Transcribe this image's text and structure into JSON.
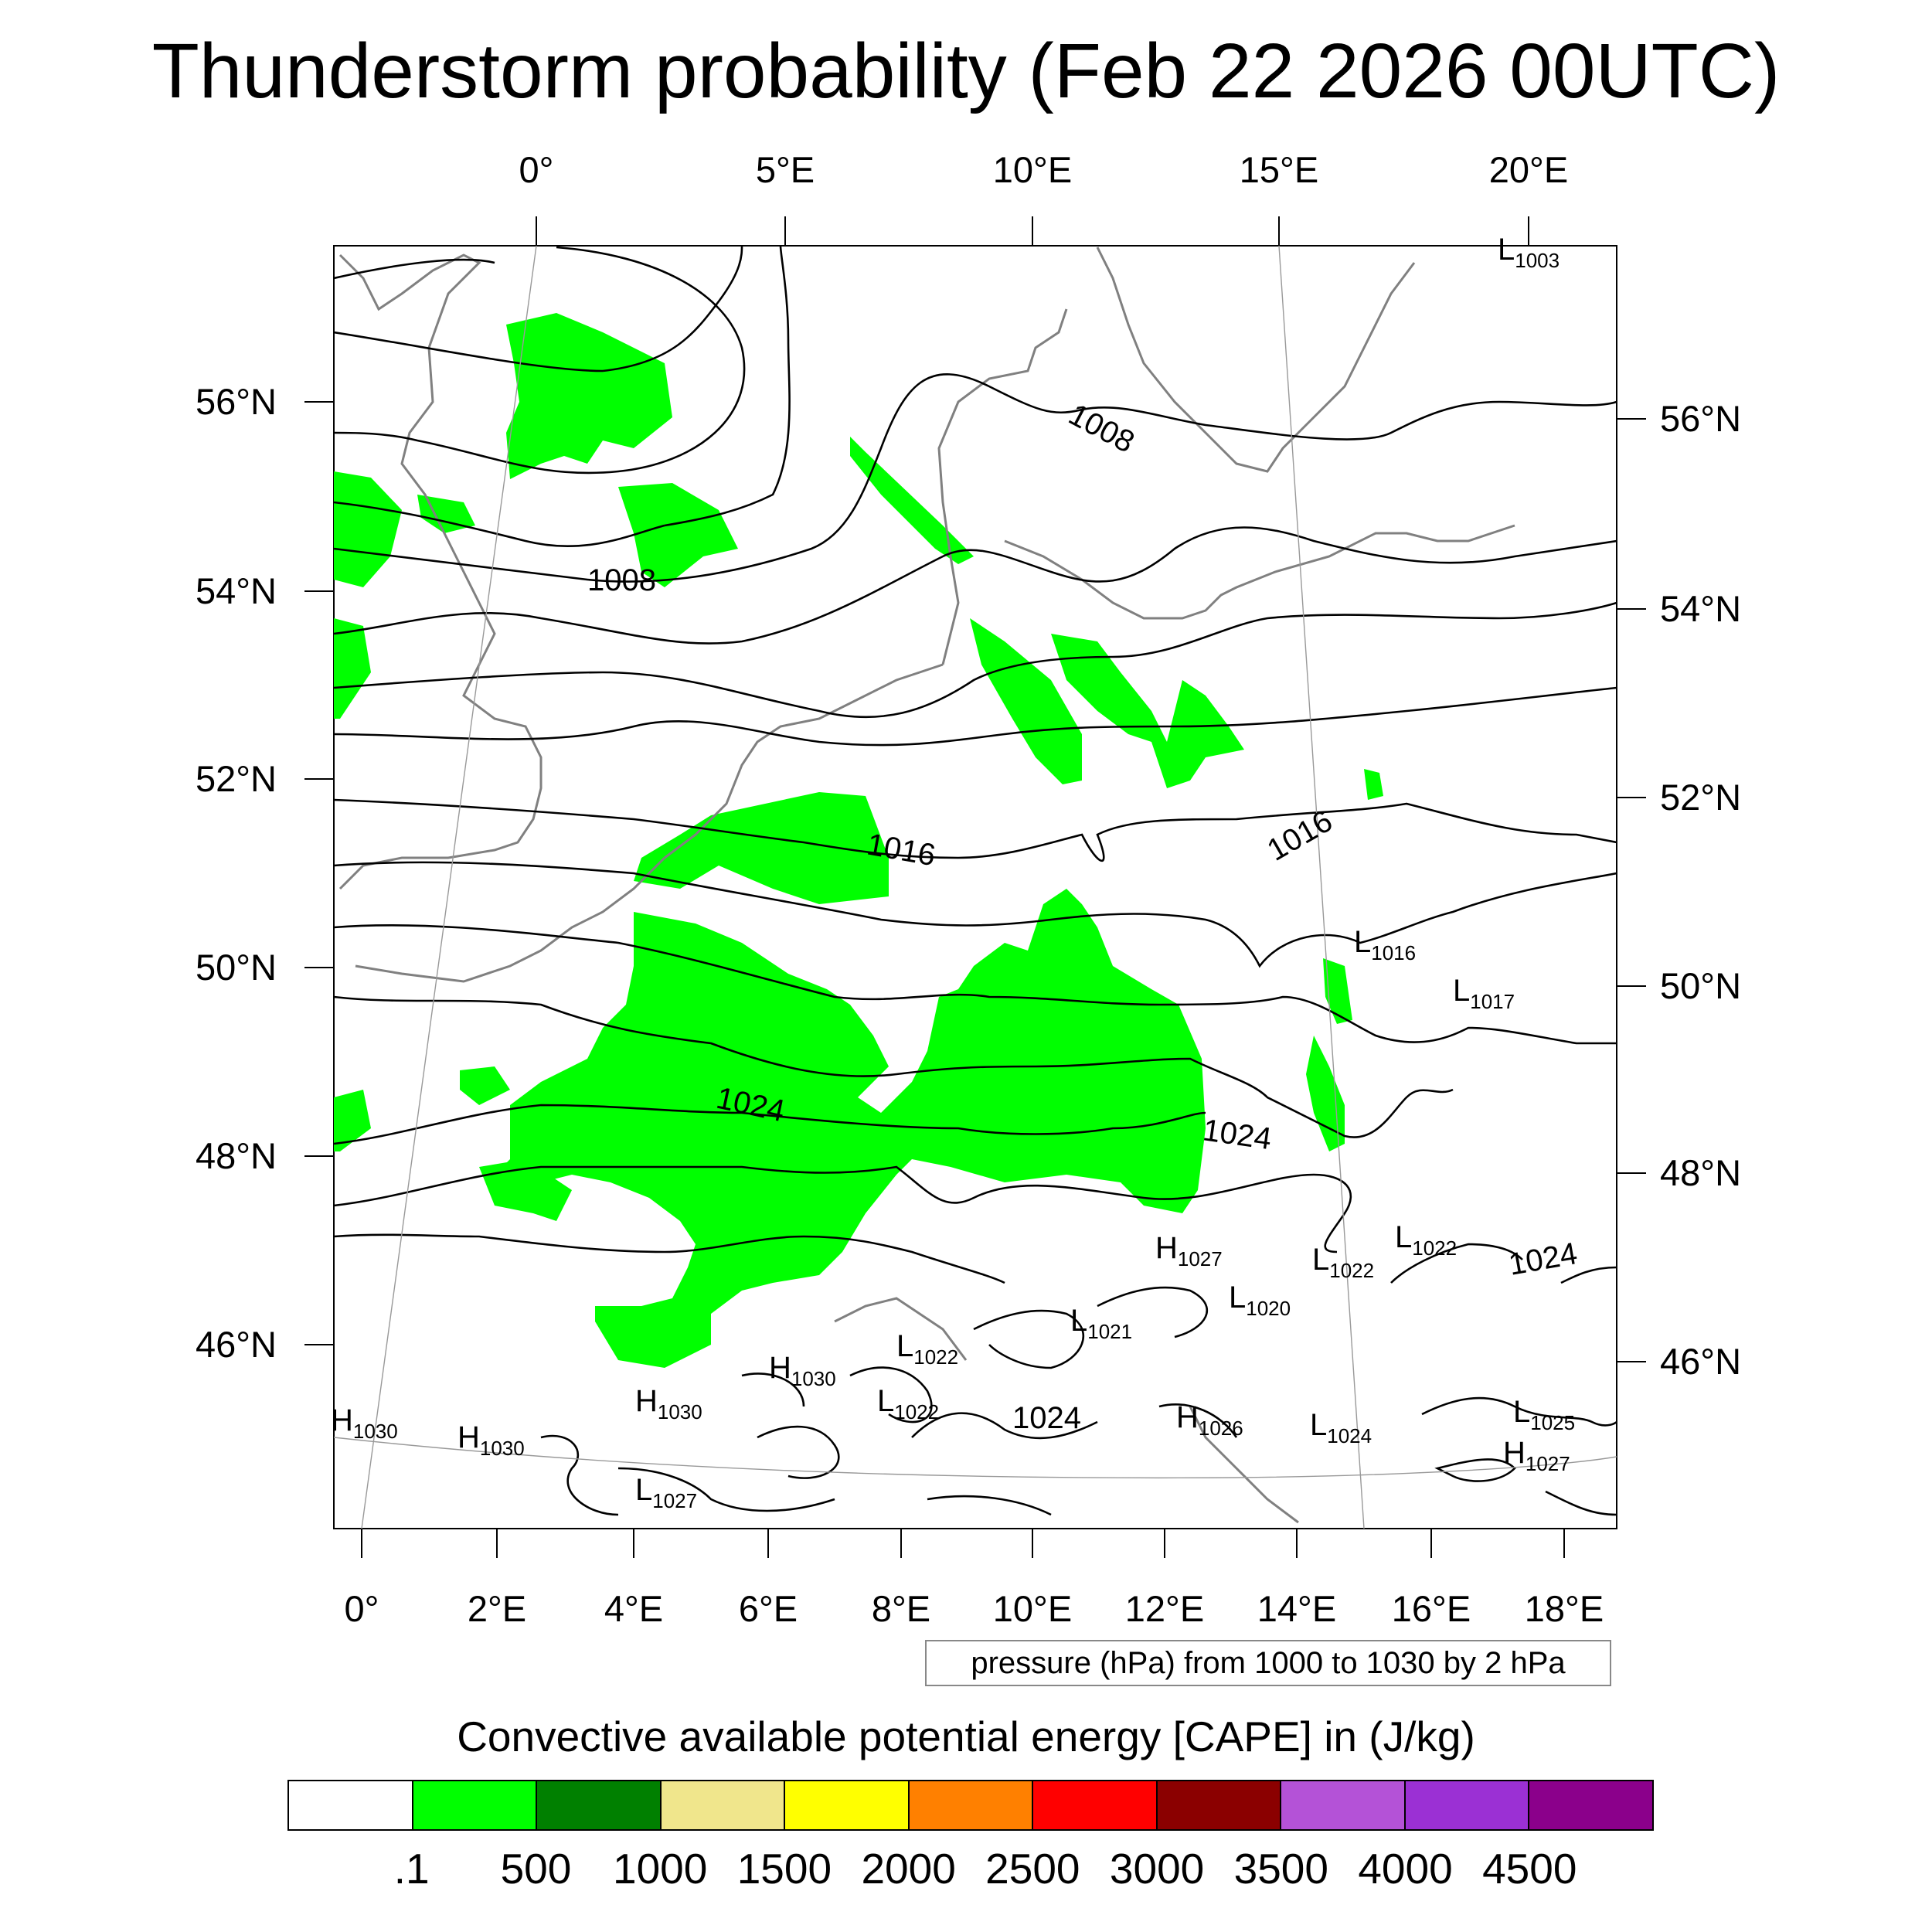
{
  "title": "Thunderstorm probability (Feb 22 2026 00UTC)",
  "map": {
    "top_longitude_labels": [
      "0°",
      "5°E",
      "10°E",
      "15°E",
      "20°E"
    ],
    "bottom_longitude_labels": [
      "0°",
      "2°E",
      "4°E",
      "6°E",
      "8°E",
      "10°E",
      "12°E",
      "14°E",
      "16°E",
      "18°E"
    ],
    "left_latitude_labels": [
      "56°N",
      "54°N",
      "52°N",
      "50°N",
      "48°N",
      "46°N"
    ],
    "right_latitude_labels": [
      "56°N",
      "54°N",
      "52°N",
      "50°N",
      "48°N",
      "46°N"
    ],
    "isobar_labels": [
      "1008",
      "1008",
      "1016",
      "1016",
      "1024",
      "1024",
      "1024",
      "1024"
    ],
    "pressure_centers": [
      {
        "kind": "L",
        "value": "1003"
      },
      {
        "kind": "L",
        "value": "1016"
      },
      {
        "kind": "L",
        "value": "1017"
      },
      {
        "kind": "H",
        "value": "1027"
      },
      {
        "kind": "L",
        "value": "1022"
      },
      {
        "kind": "L",
        "value": "1022"
      },
      {
        "kind": "L",
        "value": "1020"
      },
      {
        "kind": "L",
        "value": "1021"
      },
      {
        "kind": "L",
        "value": "1022"
      },
      {
        "kind": "H",
        "value": "1030"
      },
      {
        "kind": "L",
        "value": "1022"
      },
      {
        "kind": "H",
        "value": "1030"
      },
      {
        "kind": "H",
        "value": "1030"
      },
      {
        "kind": "H",
        "value": "1030"
      },
      {
        "kind": "L",
        "value": "1027"
      },
      {
        "kind": "H",
        "value": "1026"
      },
      {
        "kind": "L",
        "value": "1024"
      },
      {
        "kind": "L",
        "value": "1025"
      },
      {
        "kind": "H",
        "value": "1027"
      }
    ],
    "pressure_note": "pressure (hPa) from 1000 to 1030 by 2 hPa"
  },
  "colorbar": {
    "title": "Convective available potential energy [CAPE] in (J/kg)",
    "colors": [
      "#ffffff",
      "#00ff00",
      "#008000",
      "#f0e68c",
      "#ffff00",
      "#ff8000",
      "#ff0000",
      "#8b0000",
      "#b452d7",
      "#9b30d4",
      "#8b008b"
    ],
    "labels": [
      ".1",
      "500",
      "1000",
      "1500",
      "2000",
      "2500",
      "3000",
      "3500",
      "4000",
      "4500"
    ]
  }
}
